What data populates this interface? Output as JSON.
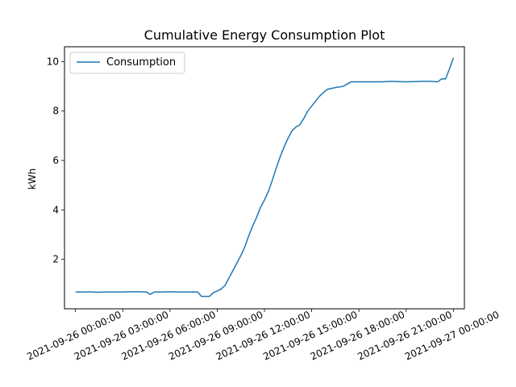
{
  "chart_data": {
    "type": "line",
    "title": "Cumulative Energy Consumption Plot",
    "xlabel": "",
    "ylabel": "kWh",
    "grid": false,
    "legend_placement": "top-left",
    "x_tick_labels": [
      "2021-09-26 00:00:00",
      "2021-09-26 03:00:00",
      "2021-09-26 06:00:00",
      "2021-09-26 09:00:00",
      "2021-09-26 12:00:00",
      "2021-09-26 15:00:00",
      "2021-09-26 18:00:00",
      "2021-09-26 21:00:00",
      "2021-09-27 00:00:00"
    ],
    "y_ticks": [
      2,
      4,
      6,
      8,
      10
    ],
    "xlim": [
      "2021-09-25 23:18:00",
      "2021-09-27 00:42:00"
    ],
    "ylim": [
      0.0,
      10.6
    ],
    "series": [
      {
        "name": "Consumption",
        "color": "#1f77b4",
        "x": [
          "2021-09-26 00:00",
          "2021-09-26 00:30",
          "2021-09-26 01:00",
          "2021-09-26 01:30",
          "2021-09-26 02:00",
          "2021-09-26 02:30",
          "2021-09-26 03:00",
          "2021-09-26 03:30",
          "2021-09-26 04:00",
          "2021-09-26 04:30",
          "2021-09-26 04:45",
          "2021-09-26 05:00",
          "2021-09-26 05:30",
          "2021-09-26 06:00",
          "2021-09-26 06:30",
          "2021-09-26 07:00",
          "2021-09-26 07:15",
          "2021-09-26 07:30",
          "2021-09-26 07:45",
          "2021-09-26 08:00",
          "2021-09-26 08:15",
          "2021-09-26 08:30",
          "2021-09-26 08:45",
          "2021-09-26 09:00",
          "2021-09-26 09:15",
          "2021-09-26 09:30",
          "2021-09-26 09:45",
          "2021-09-26 10:00",
          "2021-09-26 10:15",
          "2021-09-26 10:30",
          "2021-09-26 10:45",
          "2021-09-26 11:00",
          "2021-09-26 11:15",
          "2021-09-26 11:30",
          "2021-09-26 11:45",
          "2021-09-26 12:00",
          "2021-09-26 12:15",
          "2021-09-26 12:30",
          "2021-09-26 12:45",
          "2021-09-26 13:00",
          "2021-09-26 13:15",
          "2021-09-26 13:30",
          "2021-09-26 13:45",
          "2021-09-26 14:00",
          "2021-09-26 14:15",
          "2021-09-26 14:30",
          "2021-09-26 14:45",
          "2021-09-26 15:00",
          "2021-09-26 15:15",
          "2021-09-26 15:30",
          "2021-09-26 15:45",
          "2021-09-26 16:00",
          "2021-09-26 16:30",
          "2021-09-26 17:00",
          "2021-09-26 17:30",
          "2021-09-26 18:00",
          "2021-09-26 18:30",
          "2021-09-26 19:00",
          "2021-09-26 19:30",
          "2021-09-26 20:00",
          "2021-09-26 20:30",
          "2021-09-26 21:00",
          "2021-09-26 21:30",
          "2021-09-26 22:00",
          "2021-09-26 22:30",
          "2021-09-26 23:00",
          "2021-09-26 23:15",
          "2021-09-26 23:30",
          "2021-09-26 23:45",
          "2021-09-27 00:00"
        ],
        "y": [
          0.68,
          0.68,
          0.68,
          0.67,
          0.68,
          0.68,
          0.68,
          0.69,
          0.69,
          0.68,
          0.58,
          0.68,
          0.68,
          0.69,
          0.68,
          0.68,
          0.68,
          0.68,
          0.68,
          0.5,
          0.5,
          0.5,
          0.65,
          0.72,
          0.8,
          0.95,
          1.25,
          1.55,
          1.85,
          2.15,
          2.5,
          2.95,
          3.35,
          3.7,
          4.1,
          4.4,
          4.75,
          5.2,
          5.7,
          6.15,
          6.55,
          6.9,
          7.2,
          7.35,
          7.45,
          7.7,
          8.0,
          8.2,
          8.4,
          8.6,
          8.75,
          8.88,
          8.95,
          9.0,
          9.18,
          9.18,
          9.18,
          9.18,
          9.18,
          9.2,
          9.19,
          9.18,
          9.19,
          9.2,
          9.2,
          9.18,
          9.3,
          9.3,
          9.7,
          10.15
        ]
      }
    ]
  }
}
